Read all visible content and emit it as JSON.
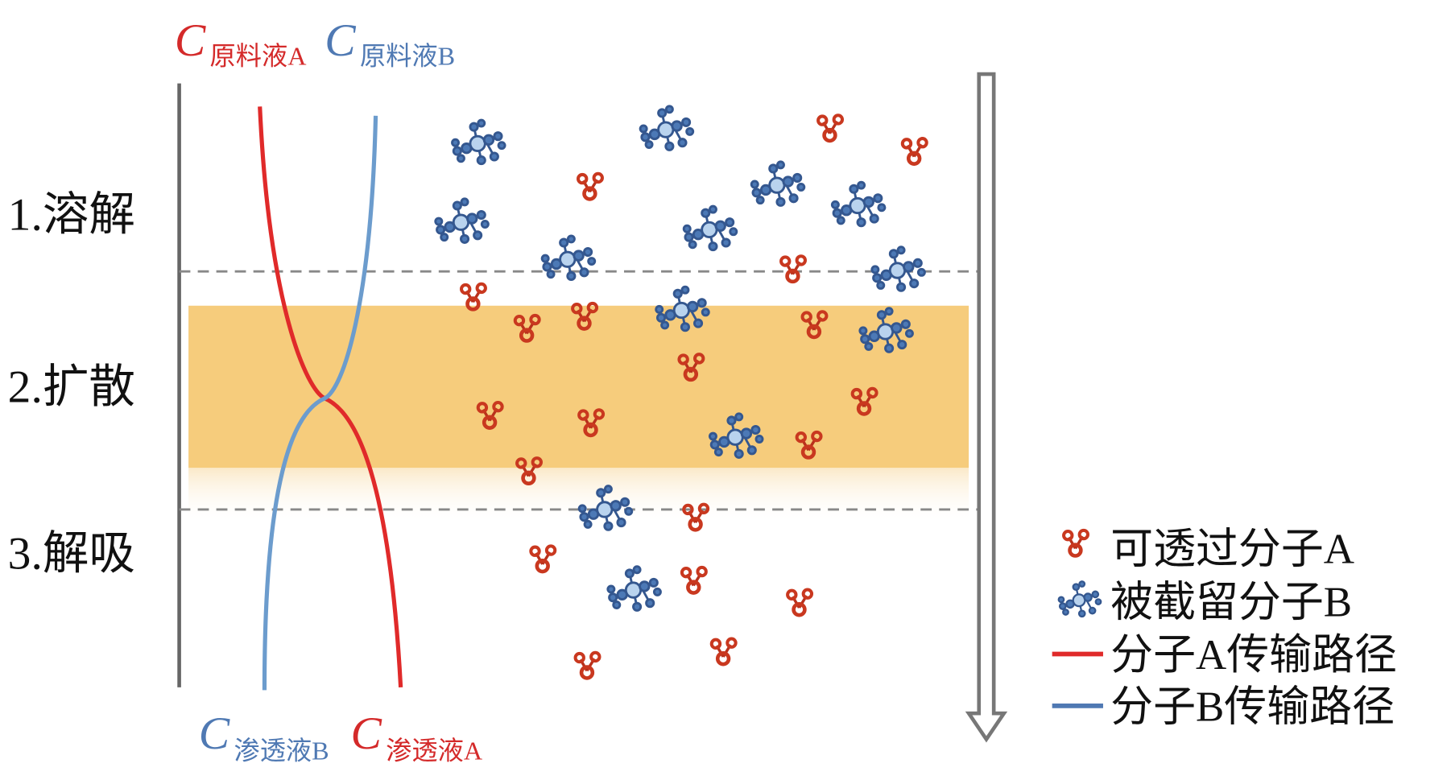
{
  "stages": [
    "1.溶解",
    "2.扩散",
    "3.解吸"
  ],
  "concentration_labels": [
    {
      "symbol": "C",
      "subscript": "原料液A"
    },
    {
      "symbol": "C",
      "subscript": "原料液B"
    },
    {
      "symbol": "C",
      "subscript": "渗透液B"
    },
    {
      "symbol": "C",
      "subscript": "渗透液A"
    }
  ],
  "legend": [
    "可透过分子A",
    "被截留分子B",
    "分子A传输路径",
    "分子B传输路径"
  ]
}
